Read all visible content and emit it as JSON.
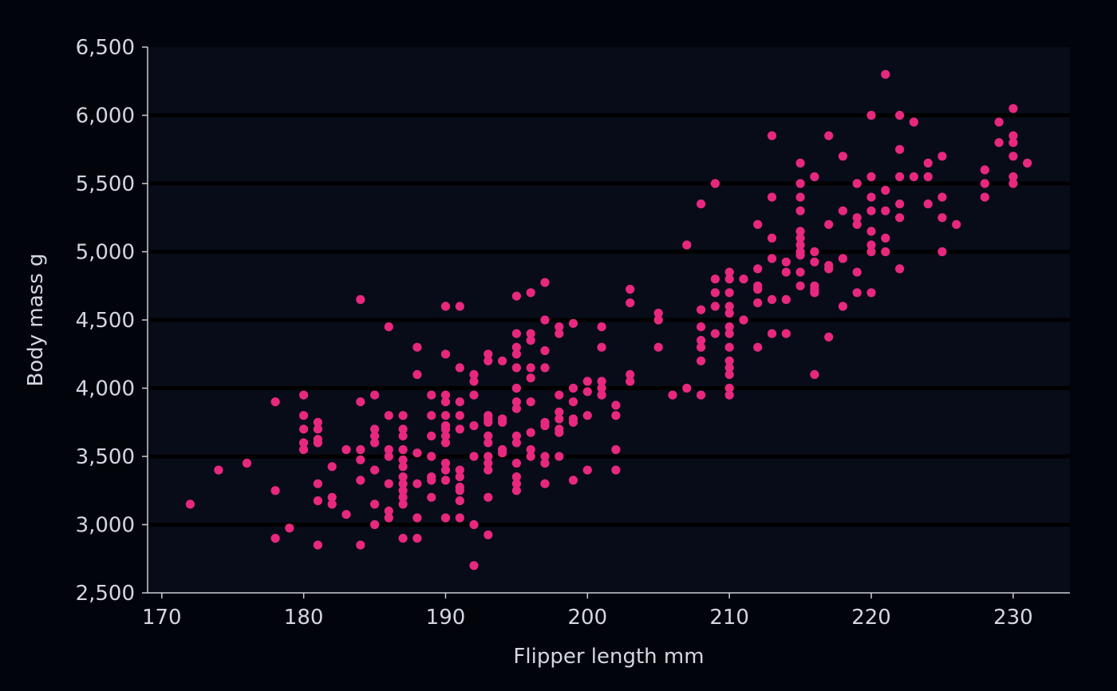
{
  "colors": {
    "background": "#02040b",
    "panel": "#070c18",
    "gridline": "#000000",
    "point": "#e8287f",
    "text": "#d2d7e1",
    "axis": "#c8cdd8"
  },
  "chart_data": {
    "type": "scatter",
    "title": "",
    "xlabel": "Flipper length mm",
    "ylabel": "Body mass g",
    "xlim": [
      169,
      234
    ],
    "ylim": [
      2500,
      6500
    ],
    "x_ticks": [
      170,
      180,
      190,
      200,
      210,
      220,
      230
    ],
    "x_tick_labels": [
      "170",
      "180",
      "190",
      "200",
      "210",
      "220",
      "230"
    ],
    "y_ticks": [
      2500,
      3000,
      3500,
      4000,
      4500,
      5000,
      5500,
      6000,
      6500
    ],
    "y_tick_labels": [
      "2,500",
      "3,000",
      "3,500",
      "4,000",
      "4,500",
      "5,000",
      "5,500",
      "6,000",
      "6,500"
    ],
    "grid": "horizontal",
    "legend": "none",
    "points": [
      [
        172,
        3150
      ],
      [
        174,
        3400
      ],
      [
        176,
        3450
      ],
      [
        178,
        3900
      ],
      [
        178,
        3250
      ],
      [
        178,
        2900
      ],
      [
        179,
        2975
      ],
      [
        180,
        3950
      ],
      [
        180,
        3800
      ],
      [
        180,
        3700
      ],
      [
        180,
        3600
      ],
      [
        180,
        3550
      ],
      [
        181,
        3750
      ],
      [
        181,
        3700
      ],
      [
        181,
        3625
      ],
      [
        181,
        3600
      ],
      [
        181,
        3300
      ],
      [
        181,
        3175
      ],
      [
        181,
        2850
      ],
      [
        182,
        3425
      ],
      [
        182,
        3200
      ],
      [
        182,
        3150
      ],
      [
        183,
        3550
      ],
      [
        183,
        3075
      ],
      [
        184,
        4650
      ],
      [
        184,
        3900
      ],
      [
        184,
        3550
      ],
      [
        184,
        3475
      ],
      [
        184,
        3325
      ],
      [
        184,
        2850
      ],
      [
        185,
        3950
      ],
      [
        185,
        3700
      ],
      [
        185,
        3650
      ],
      [
        185,
        3600
      ],
      [
        185,
        3400
      ],
      [
        185,
        3150
      ],
      [
        185,
        3000
      ],
      [
        186,
        4450
      ],
      [
        186,
        3800
      ],
      [
        186,
        3550
      ],
      [
        186,
        3500
      ],
      [
        186,
        3300
      ],
      [
        186,
        3100
      ],
      [
        186,
        3050
      ],
      [
        187,
        3800
      ],
      [
        187,
        3700
      ],
      [
        187,
        3650
      ],
      [
        187,
        3550
      ],
      [
        187,
        3475
      ],
      [
        187,
        3425
      ],
      [
        187,
        3350
      ],
      [
        187,
        3300
      ],
      [
        187,
        3250
      ],
      [
        187,
        3200
      ],
      [
        187,
        3150
      ],
      [
        187,
        2900
      ],
      [
        188,
        4300
      ],
      [
        188,
        4100
      ],
      [
        188,
        3525
      ],
      [
        188,
        3300
      ],
      [
        188,
        3050
      ],
      [
        188,
        2900
      ],
      [
        189,
        3950
      ],
      [
        189,
        3800
      ],
      [
        189,
        3650
      ],
      [
        189,
        3500
      ],
      [
        189,
        3350
      ],
      [
        189,
        3325
      ],
      [
        189,
        3200
      ],
      [
        190,
        4600
      ],
      [
        190,
        4250
      ],
      [
        190,
        3950
      ],
      [
        190,
        3900
      ],
      [
        190,
        3800
      ],
      [
        190,
        3725
      ],
      [
        190,
        3700
      ],
      [
        190,
        3650
      ],
      [
        190,
        3600
      ],
      [
        190,
        3450
      ],
      [
        190,
        3400
      ],
      [
        190,
        3325
      ],
      [
        190,
        3050
      ],
      [
        191,
        4600
      ],
      [
        191,
        4150
      ],
      [
        191,
        3900
      ],
      [
        191,
        3800
      ],
      [
        191,
        3700
      ],
      [
        191,
        3400
      ],
      [
        191,
        3350
      ],
      [
        191,
        3275
      ],
      [
        191,
        3250
      ],
      [
        191,
        3175
      ],
      [
        191,
        3050
      ],
      [
        192,
        4100
      ],
      [
        192,
        4050
      ],
      [
        192,
        3950
      ],
      [
        192,
        3725
      ],
      [
        192,
        3500
      ],
      [
        192,
        3000
      ],
      [
        192,
        2700
      ],
      [
        193,
        4250
      ],
      [
        193,
        4200
      ],
      [
        193,
        3800
      ],
      [
        193,
        3775
      ],
      [
        193,
        3750
      ],
      [
        193,
        3650
      ],
      [
        193,
        3600
      ],
      [
        193,
        3500
      ],
      [
        193,
        3450
      ],
      [
        193,
        3400
      ],
      [
        193,
        3200
      ],
      [
        193,
        2925
      ],
      [
        194,
        4200
      ],
      [
        194,
        3775
      ],
      [
        194,
        3750
      ],
      [
        194,
        3550
      ],
      [
        194,
        3525
      ],
      [
        195,
        4675
      ],
      [
        195,
        4400
      ],
      [
        195,
        4300
      ],
      [
        195,
        4250
      ],
      [
        195,
        4150
      ],
      [
        195,
        4000
      ],
      [
        195,
        3900
      ],
      [
        195,
        3850
      ],
      [
        195,
        3650
      ],
      [
        195,
        3600
      ],
      [
        195,
        3450
      ],
      [
        195,
        3350
      ],
      [
        195,
        3300
      ],
      [
        195,
        3250
      ],
      [
        196,
        4700
      ],
      [
        196,
        4400
      ],
      [
        196,
        4350
      ],
      [
        196,
        4150
      ],
      [
        196,
        4075
      ],
      [
        196,
        3900
      ],
      [
        196,
        3675
      ],
      [
        196,
        3550
      ],
      [
        196,
        3500
      ],
      [
        197,
        4775
      ],
      [
        197,
        4500
      ],
      [
        197,
        4275
      ],
      [
        197,
        4150
      ],
      [
        197,
        3750
      ],
      [
        197,
        3725
      ],
      [
        197,
        3500
      ],
      [
        197,
        3450
      ],
      [
        197,
        3300
      ],
      [
        198,
        4450
      ],
      [
        198,
        4400
      ],
      [
        198,
        3950
      ],
      [
        198,
        3825
      ],
      [
        198,
        3775
      ],
      [
        198,
        3700
      ],
      [
        198,
        3675
      ],
      [
        198,
        3500
      ],
      [
        199,
        4475
      ],
      [
        199,
        4000
      ],
      [
        199,
        3900
      ],
      [
        199,
        3775
      ],
      [
        199,
        3750
      ],
      [
        199,
        3325
      ],
      [
        200,
        4050
      ],
      [
        200,
        3975
      ],
      [
        200,
        3800
      ],
      [
        200,
        3400
      ],
      [
        201,
        4450
      ],
      [
        201,
        4300
      ],
      [
        201,
        4050
      ],
      [
        201,
        4000
      ],
      [
        201,
        3950
      ],
      [
        202,
        3875
      ],
      [
        202,
        3800
      ],
      [
        202,
        3550
      ],
      [
        202,
        3400
      ],
      [
        203,
        4725
      ],
      [
        203,
        4625
      ],
      [
        203,
        4100
      ],
      [
        203,
        4050
      ],
      [
        205,
        4550
      ],
      [
        205,
        4500
      ],
      [
        205,
        4300
      ],
      [
        206,
        3950
      ],
      [
        207,
        5050
      ],
      [
        207,
        4000
      ],
      [
        208,
        5350
      ],
      [
        208,
        4575
      ],
      [
        208,
        4450
      ],
      [
        208,
        4350
      ],
      [
        208,
        4300
      ],
      [
        208,
        4200
      ],
      [
        208,
        3950
      ],
      [
        209,
        5500
      ],
      [
        209,
        4800
      ],
      [
        209,
        4700
      ],
      [
        209,
        4600
      ],
      [
        209,
        4400
      ],
      [
        210,
        4850
      ],
      [
        210,
        4800
      ],
      [
        210,
        4700
      ],
      [
        210,
        4600
      ],
      [
        210,
        4550
      ],
      [
        210,
        4450
      ],
      [
        210,
        4400
      ],
      [
        210,
        4300
      ],
      [
        210,
        4200
      ],
      [
        210,
        4150
      ],
      [
        210,
        4100
      ],
      [
        210,
        4000
      ],
      [
        210,
        3950
      ],
      [
        211,
        4800
      ],
      [
        211,
        4500
      ],
      [
        212,
        5200
      ],
      [
        212,
        4875
      ],
      [
        212,
        4750
      ],
      [
        212,
        4725
      ],
      [
        212,
        4625
      ],
      [
        212,
        4300
      ],
      [
        213,
        5850
      ],
      [
        213,
        5400
      ],
      [
        213,
        5100
      ],
      [
        213,
        4950
      ],
      [
        213,
        4650
      ],
      [
        213,
        4400
      ],
      [
        214,
        4925
      ],
      [
        214,
        4850
      ],
      [
        214,
        4650
      ],
      [
        214,
        4400
      ],
      [
        215,
        5650
      ],
      [
        215,
        5500
      ],
      [
        215,
        5400
      ],
      [
        215,
        5300
      ],
      [
        215,
        5150
      ],
      [
        215,
        5100
      ],
      [
        215,
        5050
      ],
      [
        215,
        5000
      ],
      [
        215,
        4975
      ],
      [
        215,
        4850
      ],
      [
        215,
        4750
      ],
      [
        216,
        5550
      ],
      [
        216,
        5000
      ],
      [
        216,
        4925
      ],
      [
        216,
        4750
      ],
      [
        216,
        4725
      ],
      [
        216,
        4700
      ],
      [
        216,
        4100
      ],
      [
        217,
        5850
      ],
      [
        217,
        5200
      ],
      [
        217,
        4900
      ],
      [
        217,
        4875
      ],
      [
        217,
        4375
      ],
      [
        218,
        5700
      ],
      [
        218,
        5300
      ],
      [
        218,
        4950
      ],
      [
        218,
        4600
      ],
      [
        219,
        5500
      ],
      [
        219,
        5250
      ],
      [
        219,
        5200
      ],
      [
        219,
        4850
      ],
      [
        219,
        4700
      ],
      [
        220,
        6000
      ],
      [
        220,
        5550
      ],
      [
        220,
        5400
      ],
      [
        220,
        5300
      ],
      [
        220,
        5150
      ],
      [
        220,
        5050
      ],
      [
        220,
        5000
      ],
      [
        220,
        4700
      ],
      [
        221,
        6300
      ],
      [
        221,
        5450
      ],
      [
        221,
        5300
      ],
      [
        221,
        5100
      ],
      [
        221,
        5000
      ],
      [
        222,
        6000
      ],
      [
        222,
        5750
      ],
      [
        222,
        5550
      ],
      [
        222,
        5350
      ],
      [
        222,
        5250
      ],
      [
        222,
        4875
      ],
      [
        223,
        5950
      ],
      [
        223,
        5550
      ],
      [
        224,
        5650
      ],
      [
        224,
        5550
      ],
      [
        224,
        5350
      ],
      [
        225,
        5700
      ],
      [
        225,
        5400
      ],
      [
        225,
        5250
      ],
      [
        225,
        5000
      ],
      [
        226,
        5200
      ],
      [
        228,
        5600
      ],
      [
        228,
        5500
      ],
      [
        228,
        5400
      ],
      [
        229,
        5950
      ],
      [
        229,
        5800
      ],
      [
        230,
        6050
      ],
      [
        230,
        5850
      ],
      [
        230,
        5800
      ],
      [
        230,
        5700
      ],
      [
        230,
        5550
      ],
      [
        230,
        5500
      ],
      [
        231,
        5650
      ]
    ]
  }
}
